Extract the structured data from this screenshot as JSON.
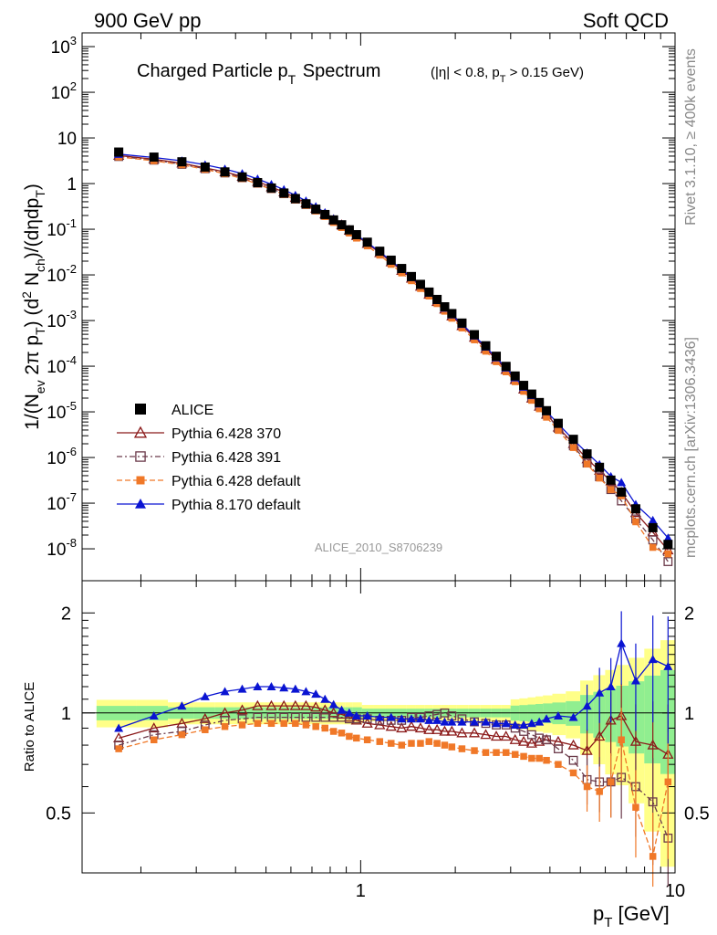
{
  "header": {
    "left": "900 GeV pp",
    "right": "Soft QCD"
  },
  "side_labels": {
    "rivet": "Rivet 3.1.10, ≥ 400k events",
    "mcplots": "mcplots.cern.ch [arXiv:1306.3436]"
  },
  "chart_data": [
    {
      "type": "line",
      "title": "Charged Particle pT Spectrum",
      "subtitle": "(|η| < 0.8, pT > 0.15 GeV)",
      "ylabel": "1/(Nev 2π pT) (d2 Nch)/(dηdpT)",
      "xlabel": "pT [GeV]",
      "xscale": "log",
      "yscale": "log",
      "xlim": [
        0.13,
        10
      ],
      "ylim": [
        2e-09,
        2000
      ],
      "watermark": "ALICE_2010_S8706239",
      "legend_position": "bottom-left",
      "x": [
        0.17,
        0.22,
        0.27,
        0.32,
        0.37,
        0.42,
        0.47,
        0.52,
        0.57,
        0.62,
        0.67,
        0.72,
        0.77,
        0.82,
        0.87,
        0.92,
        0.97,
        1.05,
        1.15,
        1.25,
        1.35,
        1.45,
        1.55,
        1.65,
        1.75,
        1.85,
        1.95,
        2.1,
        2.3,
        2.5,
        2.7,
        2.9,
        3.1,
        3.3,
        3.5,
        3.7,
        3.9,
        4.25,
        4.75,
        5.25,
        5.75,
        6.25,
        6.75,
        7.5,
        8.5,
        9.5
      ],
      "series": [
        {
          "name": "ALICE",
          "color": "#000000",
          "marker": "square-filled",
          "values": [
            4.9,
            3.8,
            3.0,
            2.3,
            1.8,
            1.4,
            1.05,
            0.8,
            0.62,
            0.47,
            0.36,
            0.275,
            0.21,
            0.16,
            0.125,
            0.097,
            0.076,
            0.052,
            0.033,
            0.021,
            0.0138,
            0.0092,
            0.0062,
            0.0042,
            0.0029,
            0.002,
            0.00142,
            0.00088,
            0.00049,
            0.00028,
            0.000165,
            9.9e-05,
            6.1e-05,
            3.8e-05,
            2.45e-05,
            1.6e-05,
            1.06e-05,
            5.6e-06,
            2.5e-06,
            1.2e-06,
            6.1e-07,
            3.2e-07,
            1.75e-07,
            7.5e-08,
            2.9e-08,
            1.25e-08
          ]
        },
        {
          "name": "Pythia 6.428 370",
          "color": "#8b1a1a",
          "marker": "triangle-open",
          "ratio": [
            0.84,
            0.9,
            0.93,
            0.96,
            1.0,
            1.02,
            1.05,
            1.05,
            1.05,
            1.05,
            1.05,
            1.04,
            1.02,
            1.0,
            0.99,
            0.97,
            0.95,
            0.93,
            0.92,
            0.91,
            0.9,
            0.91,
            0.9,
            0.89,
            0.89,
            0.88,
            0.88,
            0.87,
            0.87,
            0.86,
            0.85,
            0.85,
            0.83,
            0.82,
            0.81,
            0.82,
            0.83,
            0.82,
            0.8,
            0.77,
            0.85,
            0.95,
            0.98,
            0.82,
            0.8,
            0.75
          ]
        },
        {
          "name": "Pythia 6.428 391",
          "color": "#6b3a4a",
          "marker": "square-open",
          "ratio": [
            0.8,
            0.86,
            0.88,
            0.92,
            0.95,
            0.96,
            0.97,
            0.97,
            0.97,
            0.97,
            0.97,
            0.97,
            0.97,
            0.97,
            0.97,
            0.96,
            0.96,
            0.96,
            0.95,
            0.95,
            0.95,
            0.97,
            0.97,
            0.98,
            0.99,
            1.0,
            0.98,
            0.96,
            0.94,
            0.93,
            0.92,
            0.92,
            0.9,
            0.88,
            0.86,
            0.84,
            0.83,
            0.78,
            0.72,
            0.63,
            0.62,
            0.62,
            0.64,
            0.6,
            0.54,
            0.42
          ]
        },
        {
          "name": "Pythia 6.428 default",
          "color": "#f07828",
          "marker": "square-filled-small",
          "ratio": [
            0.78,
            0.83,
            0.86,
            0.89,
            0.91,
            0.92,
            0.93,
            0.93,
            0.93,
            0.93,
            0.92,
            0.91,
            0.9,
            0.88,
            0.87,
            0.85,
            0.84,
            0.83,
            0.82,
            0.81,
            0.8,
            0.81,
            0.81,
            0.82,
            0.81,
            0.8,
            0.79,
            0.78,
            0.77,
            0.76,
            0.76,
            0.76,
            0.75,
            0.74,
            0.73,
            0.73,
            0.72,
            0.7,
            0.66,
            0.6,
            0.58,
            0.62,
            0.83,
            0.52,
            0.37,
            0.62
          ]
        },
        {
          "name": "Pythia 8.170 default",
          "color": "#0a14d2",
          "marker": "triangle-filled",
          "ratio": [
            0.9,
            0.98,
            1.05,
            1.12,
            1.16,
            1.18,
            1.2,
            1.2,
            1.19,
            1.18,
            1.16,
            1.14,
            1.1,
            1.06,
            1.02,
            1.0,
            0.98,
            0.98,
            0.97,
            0.97,
            0.96,
            0.96,
            0.96,
            0.95,
            0.95,
            0.94,
            0.94,
            0.94,
            0.94,
            0.94,
            0.93,
            0.93,
            0.92,
            0.92,
            0.93,
            0.94,
            0.96,
            0.98,
            0.97,
            1.05,
            1.15,
            1.2,
            1.62,
            1.25,
            1.45,
            1.38
          ]
        }
      ]
    },
    {
      "type": "line",
      "ylabel": "Ratio to ALICE",
      "xlabel": "pT [GeV]",
      "xscale": "log",
      "xlim": [
        0.13,
        10
      ],
      "ylim": [
        0.33,
        2.5
      ],
      "reference_line": 1,
      "bands": {
        "inner_color": "#90ee90",
        "outer_color": "#ffff88"
      },
      "x_tick_labels": [
        "1",
        "10"
      ],
      "y_tick_labels": [
        "0.5",
        "1",
        "2"
      ]
    }
  ]
}
